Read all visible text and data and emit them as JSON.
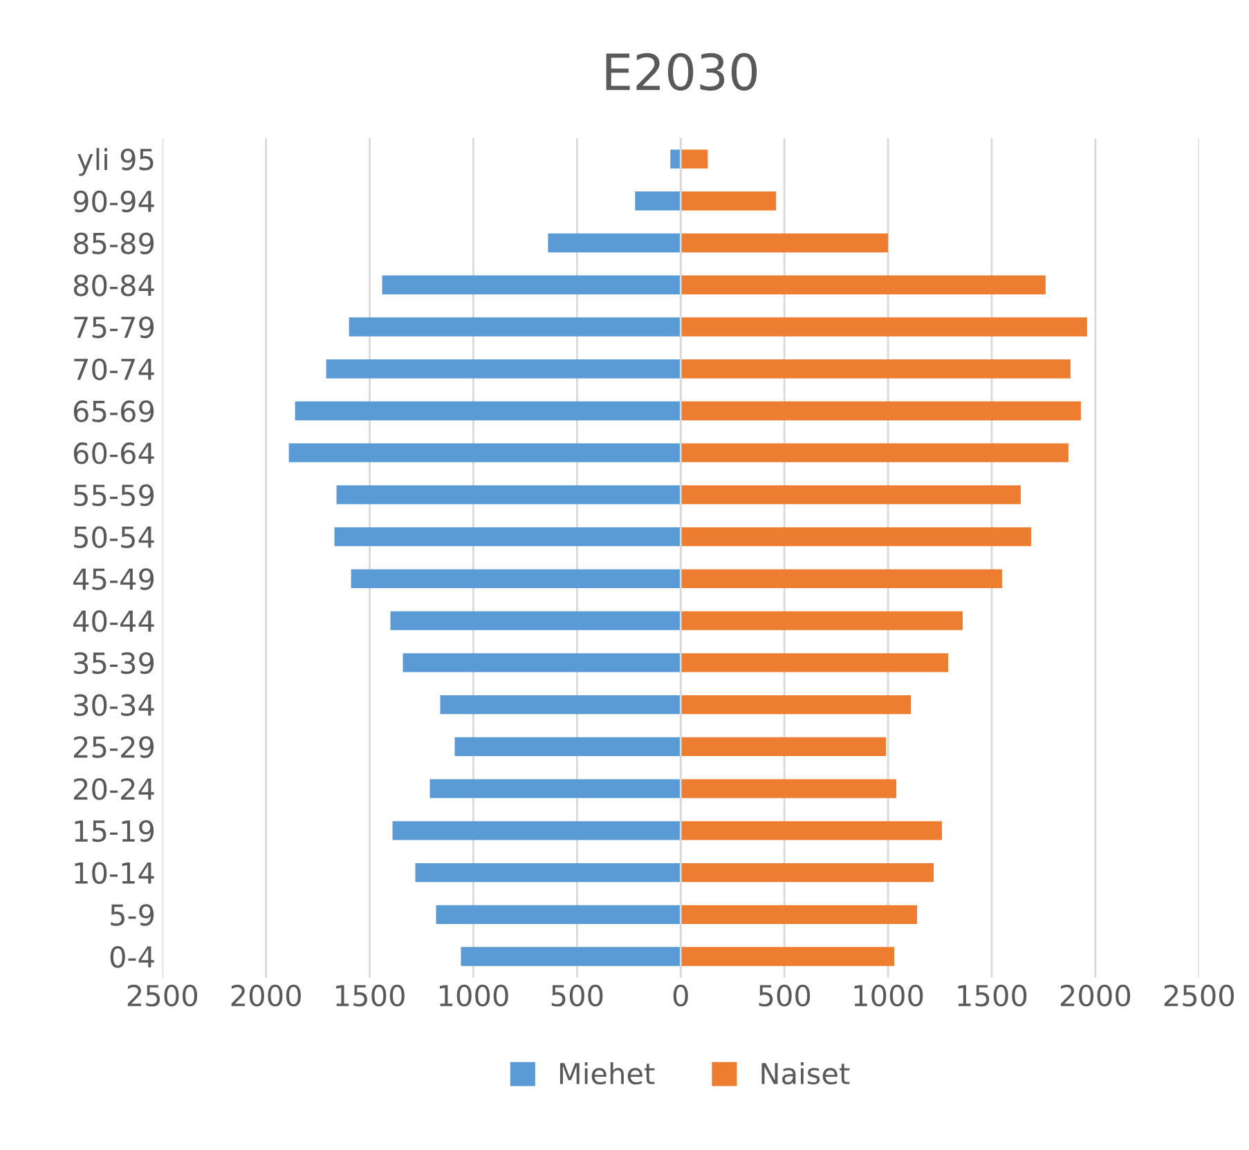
{
  "chart_data": {
    "type": "bar",
    "orientation": "horizontal",
    "stacked": true,
    "title": "E2030",
    "categories": [
      "yli 95",
      "90-94",
      "85-89",
      "80-84",
      "75-79",
      "70-74",
      "65-69",
      "60-64",
      "55-59",
      "50-54",
      "45-49",
      "40-44",
      "35-39",
      "30-34",
      "25-29",
      "20-24",
      "15-19",
      "10-14",
      "5-9",
      "0-4"
    ],
    "series": [
      {
        "name": "Miehet",
        "color": "#5b9bd5",
        "values": [
          -50,
          -220,
          -640,
          -1440,
          -1600,
          -1710,
          -1860,
          -1890,
          -1660,
          -1670,
          -1590,
          -1400,
          -1340,
          -1160,
          -1090,
          -1210,
          -1390,
          -1280,
          -1180,
          -1060
        ]
      },
      {
        "name": "Naiset",
        "color": "#ed7d31",
        "values": [
          130,
          460,
          1000,
          1760,
          1960,
          1880,
          1930,
          1870,
          1640,
          1690,
          1550,
          1360,
          1290,
          1110,
          990,
          1040,
          1260,
          1220,
          1140,
          1030
        ]
      }
    ],
    "xlim": [
      -2500,
      2500
    ],
    "xticks": [
      {
        "value": -2500,
        "label": "2500"
      },
      {
        "value": -2000,
        "label": "2000"
      },
      {
        "value": -1500,
        "label": "1500"
      },
      {
        "value": -1000,
        "label": "1000"
      },
      {
        "value": -500,
        "label": "500"
      },
      0,
      500,
      1000,
      1500,
      2000,
      2500
    ],
    "grid": "x",
    "legend": "bottom"
  }
}
